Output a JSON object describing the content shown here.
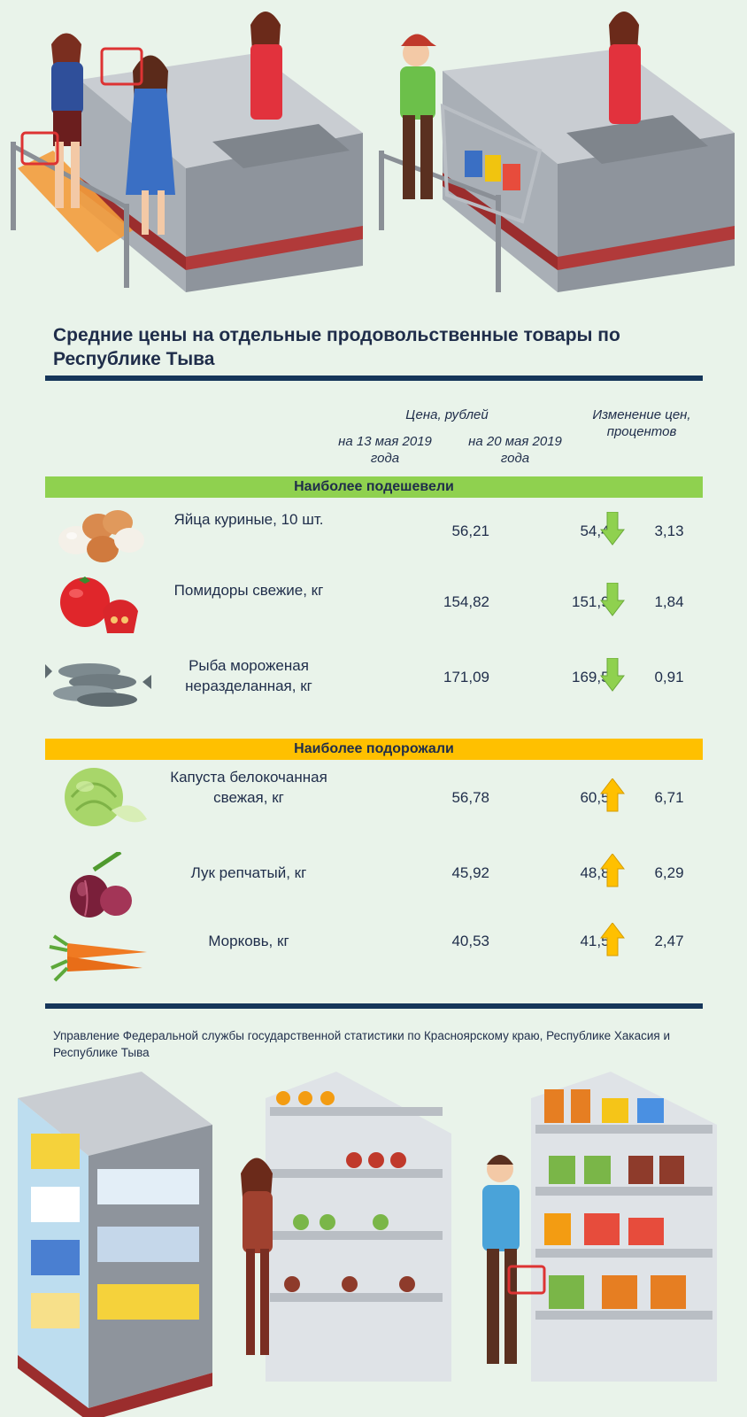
{
  "title": "Средние цены на отдельные продовольственные товары по Республике Тыва",
  "headers": {
    "price": "Цена, рублей",
    "date1": "на 13 мая 2019 года",
    "date2": "на 20 мая 2019 года",
    "change": "Изменение цен, процентов"
  },
  "sections": {
    "cheaper": "Наиболее подешевели",
    "pricier": "Наиболее подорожали"
  },
  "rows": [
    {
      "name": "Яйца куриные, 10 шт.",
      "p1": "56,21",
      "p2": "54,45",
      "change": "3,13",
      "direction": "down",
      "icon": "eggs-icon"
    },
    {
      "name": "Помидоры свежие, кг",
      "p1": "154,82",
      "p2": "151,97",
      "change": "1,84",
      "direction": "down",
      "icon": "tomato-icon"
    },
    {
      "name": "Рыба мороженая неразделанная, кг",
      "p1": "171,09",
      "p2": "169,53",
      "change": "0,91",
      "direction": "down",
      "icon": "fish-icon"
    },
    {
      "name": "Капуста белокочанная свежая, кг",
      "p1": "56,78",
      "p2": "60,59",
      "change": "6,71",
      "direction": "up",
      "icon": "cabbage-icon"
    },
    {
      "name": "Лук репчатый, кг",
      "p1": "45,92",
      "p2": "48,81",
      "change": "6,29",
      "direction": "up",
      "icon": "onion-icon"
    },
    {
      "name": "Морковь, кг",
      "p1": "40,53",
      "p2": "41,53",
      "change": "2,47",
      "direction": "up",
      "icon": "carrot-icon"
    }
  ],
  "source": "Управление Федеральной службы государственной статистики по Красноярскому краю, Республике Хакасия и Республике Тыва",
  "colors": {
    "down": "#8fd14f",
    "up": "#ffc000",
    "rule": "#16365a",
    "text": "#1f2d4a"
  }
}
